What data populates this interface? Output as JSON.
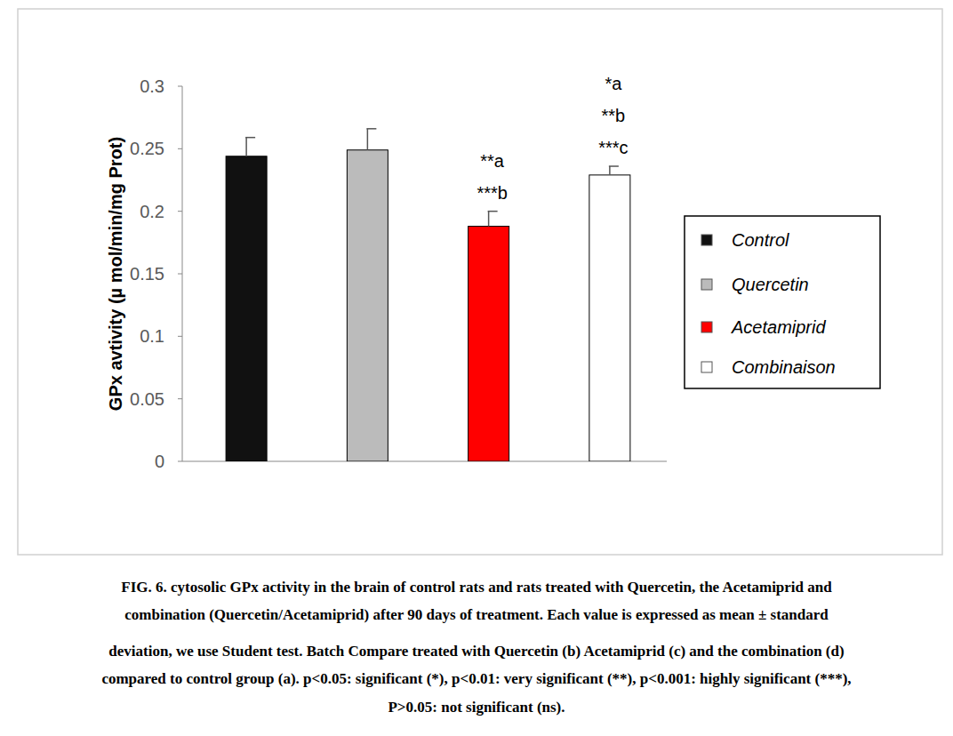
{
  "chart_data": {
    "type": "bar",
    "y_label": "GPx avtivity (µ mol/min/mg Prot)",
    "categories": [
      null
    ],
    "ylim": [
      0,
      0.3
    ],
    "yticks": [
      0,
      0.05,
      0.1,
      0.15,
      0.2,
      0.25,
      0.3
    ],
    "grid": false,
    "legend": "right",
    "tick_labels": "y",
    "series": [
      {
        "name": "Control",
        "color": "#111111",
        "values": [
          0.244
        ],
        "errors": [
          0.015
        ],
        "annotations": []
      },
      {
        "name": "Quercetin",
        "color": "#bbbbbb",
        "values": [
          0.249
        ],
        "errors": [
          0.017
        ],
        "annotations": []
      },
      {
        "name": "Acetamiprid",
        "color": "#ff0000",
        "values": [
          0.188
        ],
        "errors": [
          0.012
        ],
        "annotations": [
          "**a",
          "***b"
        ]
      },
      {
        "name": "Combinaison",
        "color": "#ffffff",
        "values": [
          0.229
        ],
        "errors": [
          0.007
        ],
        "annotations": [
          "*a",
          "**b",
          "***c"
        ]
      }
    ],
    "caption": [
      "FIG. 6. cytosolic GPx activity in the brain of control rats and rats treated with Quercetin, the Acetamiprid and",
      "combination (Quercetin/Acetamiprid) after 90 days of treatment. Each value is expressed as mean ± standard",
      "deviation, we use Student test. Batch Compare treated with Quercetin (b) Acetamiprid (c) and the combination (d)",
      "compared to control group (a). p<0.05: significant (*), p<0.01: very significant (**), p<0.001: highly significant (***),",
      "P>0.05: not significant (ns)."
    ]
  }
}
